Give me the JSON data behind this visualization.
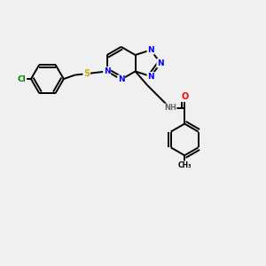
{
  "background_color": "#f0f0f0",
  "atom_colors": {
    "N": "#0000ff",
    "O": "#ff0000",
    "S": "#ccaa00",
    "Cl": "#008000",
    "C": "#000000",
    "H": "#666666"
  },
  "bond_color": "#000000",
  "bond_width": 1.4,
  "figsize": [
    3.0,
    3.0
  ],
  "dpi": 100
}
